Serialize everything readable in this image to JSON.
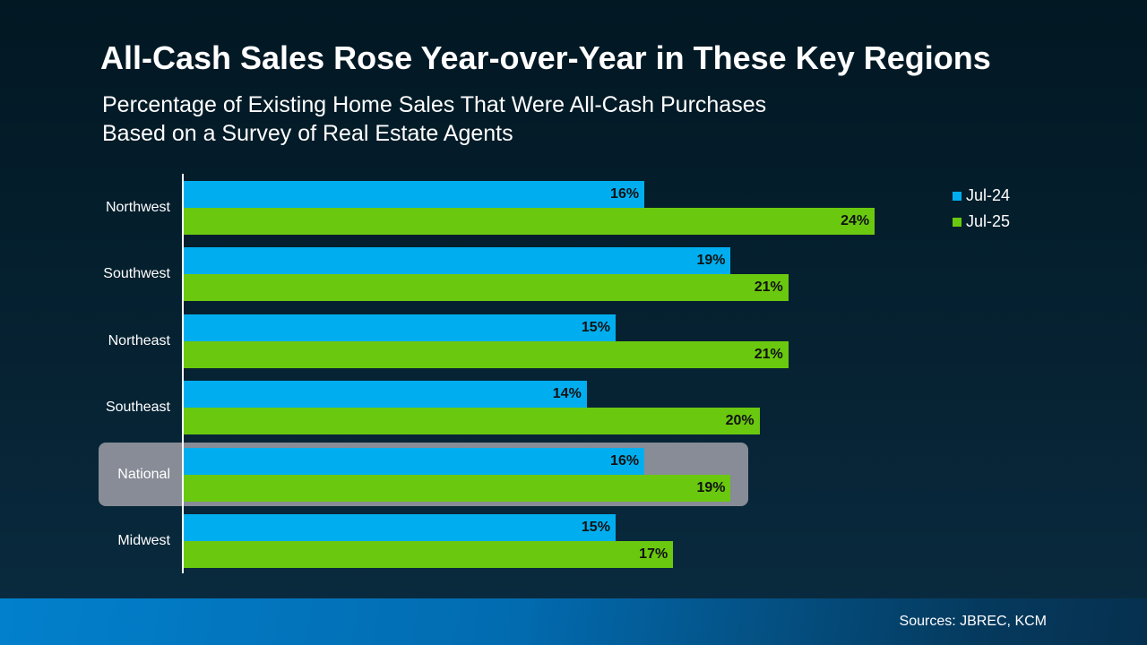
{
  "title": "All-Cash Sales Rose Year-over-Year in These Key Regions",
  "subtitle": [
    "Percentage of Existing Home Sales That Were All-Cash Purchases",
    "Based on a Survey of Real Estate Agents"
  ],
  "footer": {
    "source": "Sources: JBREC, KCM"
  },
  "chart_data": {
    "type": "bar",
    "orientation": "horizontal",
    "categories": [
      "Northwest",
      "Southwest",
      "Northeast",
      "Southeast",
      "National",
      "Midwest"
    ],
    "highlighted_category": "National",
    "series": [
      {
        "name": "Jul-24",
        "color": "#00aeef",
        "values": [
          16,
          19,
          15,
          14,
          16,
          15
        ],
        "labels": [
          "16%",
          "19%",
          "15%",
          "14%",
          "16%",
          "15%"
        ]
      },
      {
        "name": "Jul-25",
        "color": "#6ac90f",
        "values": [
          24,
          21,
          21,
          20,
          19,
          17
        ],
        "labels": [
          "24%",
          "21%",
          "21%",
          "20%",
          "19%",
          "17%"
        ]
      }
    ],
    "xlim": [
      0,
      30
    ],
    "grid": false,
    "legend": "top-right",
    "highlight_color": "#878c96"
  }
}
